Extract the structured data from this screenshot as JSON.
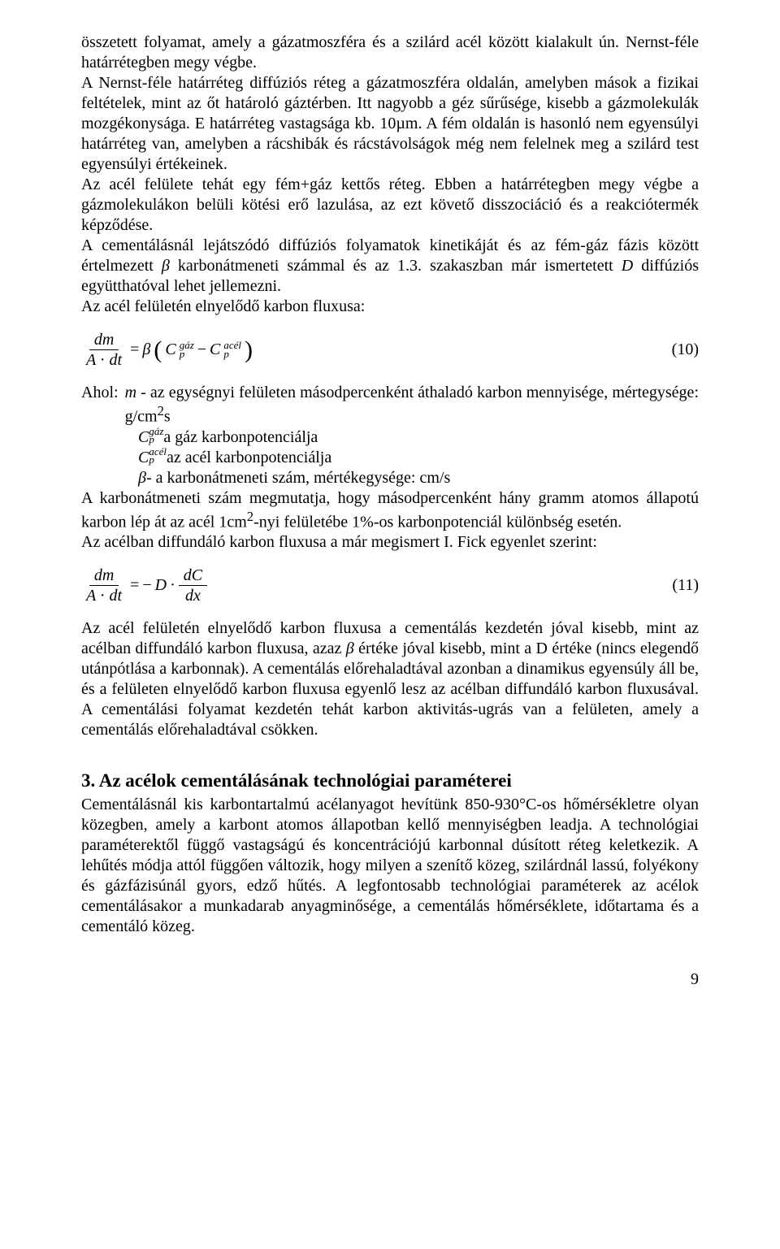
{
  "para1": "összetett folyamat, amely a gázatmoszféra és a szilárd acél között kialakult ún. Nernst-féle határrétegben megy végbe.",
  "para2": "A Nernst-féle határréteg diffúziós réteg a gázatmoszféra oldalán, amelyben mások a fizikai feltételek, mint az őt határoló gáztérben. Itt nagyobb a géz sűrűsége, kisebb a gázmolekulák mozgékonysága. E határréteg vastagsága kb. 10µm. A fém oldalán is hasonló nem egyensúlyi határréteg van, amelyben a rácshibák és rácstávolságok még nem felelnek meg a szilárd test egyensúlyi értékeinek.",
  "para3": "Az acél felülete tehát egy fém+gáz kettős réteg. Ebben a határrétegben megy végbe a gázmolekulákon belüli kötési erő lazulása, az ezt követő disszociáció és a reakciótermék képződése.",
  "para4a": "A cementálásnál lejátszódó diffúziós folyamatok kinetikáját és az fém-gáz fázis között értelmezett ",
  "para4_beta": "β",
  "para4b": "  karbonátmeneti számmal és az 1.3. szakaszban már ismertetett  ",
  "para4_D": "D",
  "para4c": "  diffúziós együtthatóval lehet jellemezni.",
  "para5": "Az acél felületén elnyelődő karbon fluxusa:",
  "eq10": {
    "num": "dm",
    "den_A": "A",
    "den_dot": "·",
    "den_dt": "dt",
    "eq": "=",
    "beta": "β",
    "lpar": "(",
    "C": "C",
    "sup_gaz": "gáz",
    "sub_p": "p",
    "minus": "−",
    "sup_acel": "acél",
    "rpar": ")",
    "num_label": "(10)"
  },
  "def_intro": "Ahol:",
  "def1a": "m ",
  "def1b": "-  az  egységnyi  felületen  másodpercenként  áthaladó  karbon  mennyisége, mértegysége: g/cm",
  "def1_sup": "2",
  "def1c": "s",
  "def2_sup": "gáz",
  "def2_sub": "p",
  "def2_C": "C",
  "def2": "  a gáz karbonpotenciálja",
  "def3_sup": "acél",
  "def3_sub": "p",
  "def3_C": "C",
  "def3": "  az acél karbonpotenciálja",
  "def4_beta": "β",
  "def4": " - a karbonátmeneti szám, mértékegysége: cm/s",
  "para6a": "A karbonátmeneti szám megmutatja, hogy másodpercenként hány gramm atomos állapotú karbon lép át az acél 1cm",
  "para6_sup": "2",
  "para6b": "-nyi felületébe 1%-os karbonpotenciál különbség esetén.",
  "para7": "Az acélban diffundáló karbon fluxusa a már megismert I. Fick egyenlet szerint:",
  "eq11": {
    "num1": "dm",
    "den1_A": "A",
    "den1_dot": "·",
    "den1_dt": "dt",
    "eq": "=",
    "minus": "−",
    "D": "D",
    "dot": "·",
    "num2": "dC",
    "den2": "dx",
    "num_label": "(11)"
  },
  "para8a": "Az acél felületén elnyelődő karbon fluxusa a cementálás kezdetén jóval kisebb, mint az acélban diffundáló karbon fluxusa, azaz  ",
  "para8_beta": "β",
  "para8b": "  értéke jóval kisebb, mint a D értéke (nincs elegendő utánpótlása a karbonnak). A cementálás előrehaladtával azonban a dinamikus egyensúly áll be, és a felületen elnyelődő karbon fluxusa egyenlő lesz az acélban diffundáló karbon fluxusával. A cementálási folyamat kezdetén tehát karbon aktivitás-ugrás van a felületen, amely a cementálás előrehaladtával csökken.",
  "section_title": "3. Az acélok cementálásának technológiai paraméterei",
  "para9": "Cementálásnál kis karbontartalmú acélanyagot hevítünk 850-930°C-os hőmérsékletre olyan közegben, amely a karbont atomos állapotban kellő mennyiségben leadja. A technológiai paraméterektől függő vastagságú és koncentrációjú karbonnal dúsított réteg keletkezik. A lehűtés módja attól függően változik, hogy milyen a szenítő közeg, szilárdnál lassú, folyékony és gázfázisúnál gyors, edző hűtés. A legfontosabb technológiai paraméterek az acélok cementálásakor a munkadarab anyagminősége, a cementálás hőmérséklete, időtartama és a cementáló közeg.",
  "page_number": "9"
}
